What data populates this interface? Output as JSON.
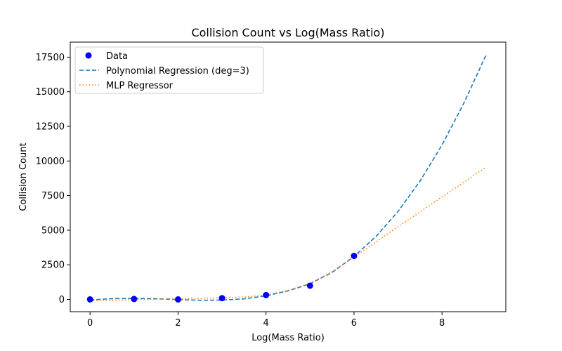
{
  "chart_data": {
    "type": "scatter",
    "title": "Collision Count vs Log(Mass Ratio)",
    "xlabel": "Log(Mass Ratio)",
    "ylabel": "Collision Count",
    "xlim": [
      -0.45,
      9.45
    ],
    "ylim": [
      -885,
      18585
    ],
    "xticks": [
      0,
      2,
      4,
      6,
      8
    ],
    "yticks": [
      0,
      2500,
      5000,
      7500,
      10000,
      12500,
      15000,
      17500
    ],
    "legend_position": "upper-left",
    "grid": false,
    "series": [
      {
        "name": "Data",
        "kind": "scatter",
        "color": "#0000ff",
        "x": [
          0,
          1,
          2,
          3,
          4,
          5,
          6
        ],
        "y": [
          3,
          31,
          2,
          94,
          314,
          992,
          3141
        ]
      },
      {
        "name": "Polynomial Regression (deg=3)",
        "kind": "line",
        "style": "dashed",
        "color": "#1f77b4",
        "x": [
          0,
          0.5,
          1,
          1.5,
          2,
          2.5,
          3,
          3.5,
          4,
          4.5,
          5,
          5.5,
          6,
          6.5,
          7,
          7.5,
          8,
          8.5,
          9
        ],
        "y": [
          -30,
          55,
          80,
          50,
          -10,
          -60,
          -50,
          40,
          260,
          620,
          1130,
          1950,
          3100,
          4550,
          6350,
          8550,
          11150,
          14200,
          17650
        ]
      },
      {
        "name": "MLP Regressor",
        "kind": "line",
        "style": "dotted",
        "color": "#ff7f0e",
        "x": [
          0,
          1,
          2,
          3,
          3.5,
          4,
          4.5,
          5,
          5.5,
          6,
          7,
          8,
          9
        ],
        "y": [
          -80,
          -30,
          60,
          120,
          170,
          330,
          650,
          1150,
          2000,
          3050,
          5250,
          7400,
          9550
        ]
      }
    ]
  }
}
